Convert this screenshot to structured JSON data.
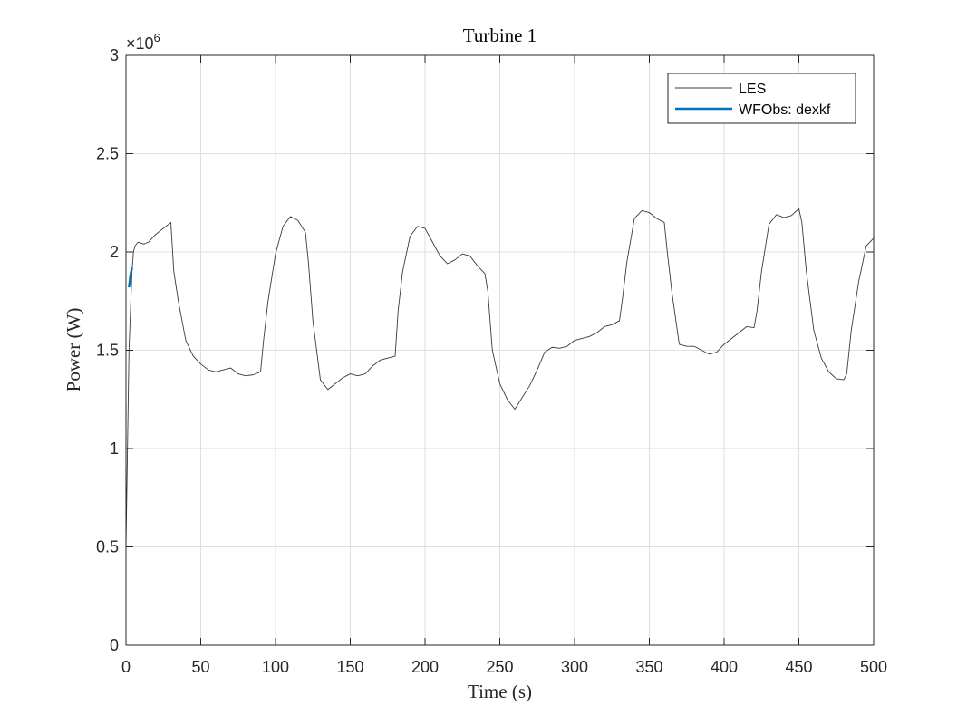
{
  "chart_data": {
    "type": "line",
    "title": "Turbine 1",
    "xlabel": "Time (s)",
    "ylabel": "Power (W)",
    "xlim": [
      0,
      500
    ],
    "ylim": [
      0,
      3000000
    ],
    "y_exponent_label": "×10",
    "y_exponent_power": "6",
    "x_ticks": [
      0,
      50,
      100,
      150,
      200,
      250,
      300,
      350,
      400,
      450,
      500
    ],
    "x_tick_labels": [
      "0",
      "50",
      "100",
      "150",
      "200",
      "250",
      "300",
      "350",
      "400",
      "450",
      "500"
    ],
    "y_ticks": [
      0,
      500000,
      1000000,
      1500000,
      2000000,
      2500000,
      3000000
    ],
    "y_tick_labels": [
      "0",
      "0.5",
      "1",
      "1.5",
      "2",
      "2.5",
      "3"
    ],
    "grid": true,
    "legend_position": "top-right",
    "series": [
      {
        "name": "LES",
        "color": "#3a3a3a",
        "x": [
          0,
          1,
          2,
          3,
          4,
          5,
          6,
          8,
          12,
          15,
          20,
          25,
          30,
          32,
          35,
          40,
          45,
          50,
          55,
          60,
          65,
          70,
          75,
          80,
          85,
          90,
          92,
          95,
          100,
          105,
          110,
          115,
          120,
          122,
          125,
          130,
          135,
          140,
          145,
          150,
          155,
          160,
          165,
          170,
          175,
          180,
          182,
          185,
          190,
          195,
          200,
          205,
          210,
          215,
          220,
          225,
          230,
          235,
          240,
          242,
          245,
          250,
          255,
          260,
          265,
          270,
          275,
          280,
          285,
          290,
          295,
          300,
          305,
          310,
          315,
          320,
          325,
          330,
          332,
          335,
          340,
          345,
          350,
          355,
          360,
          362,
          365,
          370,
          375,
          380,
          385,
          390,
          395,
          400,
          405,
          410,
          415,
          420,
          422,
          425,
          430,
          435,
          440,
          445,
          450,
          452,
          455,
          460,
          465,
          470,
          475,
          480,
          482,
          485,
          490,
          495,
          500
        ],
        "y": [
          500000,
          1000000,
          1500000,
          1700000,
          1900000,
          2000000,
          2030000,
          2050000,
          2040000,
          2050000,
          2090000,
          2120000,
          2150000,
          1900000,
          1750000,
          1550000,
          1470000,
          1430000,
          1400000,
          1390000,
          1400000,
          1410000,
          1380000,
          1370000,
          1375000,
          1390000,
          1550000,
          1750000,
          1990000,
          2130000,
          2180000,
          2160000,
          2100000,
          1950000,
          1650000,
          1350000,
          1300000,
          1330000,
          1360000,
          1380000,
          1370000,
          1380000,
          1420000,
          1450000,
          1460000,
          1470000,
          1700000,
          1900000,
          2080000,
          2130000,
          2120000,
          2050000,
          1980000,
          1940000,
          1960000,
          1990000,
          1980000,
          1930000,
          1890000,
          1800000,
          1500000,
          1330000,
          1250000,
          1200000,
          1260000,
          1320000,
          1400000,
          1490000,
          1515000,
          1510000,
          1520000,
          1550000,
          1560000,
          1570000,
          1590000,
          1620000,
          1630000,
          1650000,
          1760000,
          1950000,
          2170000,
          2210000,
          2200000,
          2170000,
          2150000,
          2000000,
          1800000,
          1530000,
          1520000,
          1520000,
          1500000,
          1480000,
          1490000,
          1530000,
          1560000,
          1590000,
          1620000,
          1615000,
          1700000,
          1900000,
          2140000,
          2190000,
          2175000,
          2185000,
          2220000,
          2150000,
          1900000,
          1600000,
          1460000,
          1390000,
          1355000,
          1350000,
          1380000,
          1600000,
          1850000,
          2030000,
          2070000
        ]
      },
      {
        "name": "WFObs: dexkf",
        "color": "#0072bd",
        "x": [
          2,
          2.5,
          3,
          3.5,
          4
        ],
        "y": [
          1820000,
          1850000,
          1880000,
          1900000,
          1920000
        ]
      }
    ]
  }
}
